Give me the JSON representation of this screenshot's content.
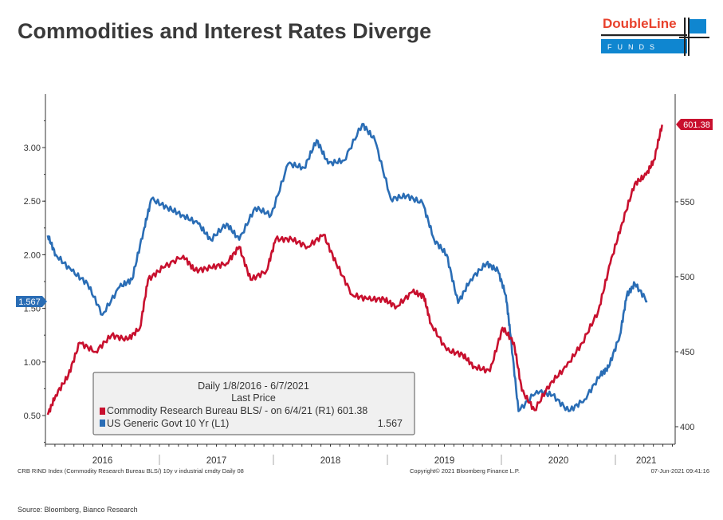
{
  "title": "Commodities and Interest Rates Diverge",
  "logo": {
    "top": "DoubleLine",
    "bottom": "F U N D S",
    "colors": {
      "red": "#e8412c",
      "blue": "#0f86d0"
    }
  },
  "source": "Source: Bloomberg, Bianco Research",
  "chart_data": {
    "type": "line",
    "title": "Commodities and Interest Rates Diverge",
    "xlim": [
      2016.0,
      2021.5
    ],
    "x_tick_labels": [
      "2016",
      "2017",
      "2018",
      "2019",
      "2020",
      "2021"
    ],
    "left_axis": {
      "ylim": [
        0.25,
        3.5
      ],
      "ticks": [
        "0.50",
        "1.00",
        "1.50",
        "2.00",
        "2.50",
        "3.00"
      ]
    },
    "right_axis": {
      "ylim": [
        391,
        625
      ],
      "ticks": [
        "400",
        "450",
        "500",
        "550"
      ]
    },
    "legend": {
      "header1": "Daily 1/8/2016 - 6/7/2021",
      "header2": "Last Price",
      "entries": [
        {
          "label": "Commodity Research Bureau BLS/ -  on 6/4/21  (R1) 601.38",
          "color": "#c8102e"
        },
        {
          "label": "US Generic Govt 10 Yr  (L1)",
          "value": "1.567",
          "color": "#2a6db5"
        }
      ],
      "placement": "bottom-left"
    },
    "last_value_tags": {
      "right": "601.38",
      "left": "1.567"
    },
    "footer": {
      "left": "CRB RIND Index (Commodity Research Bureau BLS/) 10y v industrial cmdty  Daily 08",
      "center": "Copyright© 2021 Bloomberg Finance L.P.",
      "right": "07-Jun-2021 09:41:16"
    },
    "series": [
      {
        "name": "US Generic Govt 10 Yr",
        "axis": "left",
        "color": "#2a6db5",
        "x": [
          2016.02,
          2016.09,
          2016.23,
          2016.37,
          2016.5,
          2016.65,
          2016.76,
          2016.86,
          2016.93,
          2017.07,
          2017.2,
          2017.34,
          2017.45,
          2017.59,
          2017.7,
          2017.84,
          2017.98,
          2018.13,
          2018.27,
          2018.38,
          2018.48,
          2018.62,
          2018.78,
          2018.89,
          2019.03,
          2019.17,
          2019.31,
          2019.41,
          2019.52,
          2019.62,
          2019.73,
          2019.87,
          2019.97,
          2020.04,
          2020.08,
          2020.15,
          2020.31,
          2020.45,
          2020.59,
          2020.73,
          2020.87,
          2020.94,
          2021.04,
          2021.1,
          2021.17,
          2021.28
        ],
        "values": [
          2.18,
          2.0,
          1.85,
          1.73,
          1.44,
          1.7,
          1.77,
          2.22,
          2.52,
          2.44,
          2.37,
          2.29,
          2.14,
          2.29,
          2.14,
          2.44,
          2.37,
          2.85,
          2.81,
          3.07,
          2.85,
          2.88,
          3.22,
          3.07,
          2.52,
          2.55,
          2.48,
          2.14,
          2.0,
          1.55,
          1.77,
          1.92,
          1.85,
          1.62,
          1.25,
          0.54,
          0.73,
          0.69,
          0.54,
          0.65,
          0.88,
          0.95,
          1.25,
          1.62,
          1.73,
          1.567
        ]
      },
      {
        "name": "Commodity Research Bureau BLS/",
        "axis": "right",
        "color": "#c8102e",
        "x": [
          2016.02,
          2016.09,
          2016.2,
          2016.3,
          2016.44,
          2016.58,
          2016.72,
          2016.83,
          2016.9,
          2017.03,
          2017.21,
          2017.31,
          2017.45,
          2017.59,
          2017.7,
          2017.8,
          2017.94,
          2018.02,
          2018.16,
          2018.3,
          2018.44,
          2018.55,
          2018.69,
          2018.83,
          2018.97,
          2019.08,
          2019.22,
          2019.32,
          2019.38,
          2019.52,
          2019.66,
          2019.76,
          2019.9,
          2020.01,
          2020.11,
          2020.18,
          2020.29,
          2020.43,
          2020.57,
          2020.71,
          2020.85,
          2020.955,
          2021.06,
          2021.17,
          2021.27,
          2021.34,
          2021.41
        ],
        "values": [
          408,
          421,
          434,
          456,
          450,
          461,
          458,
          466,
          498,
          506,
          514,
          504,
          506,
          509,
          520,
          498,
          504,
          525,
          525,
          520,
          528,
          509,
          488,
          485,
          485,
          480,
          490,
          487,
          469,
          451,
          448,
          440,
          437,
          466,
          456,
          424,
          411,
          429,
          440,
          456,
          477,
          509,
          536,
          562,
          568,
          578,
          601.38
        ]
      }
    ]
  }
}
